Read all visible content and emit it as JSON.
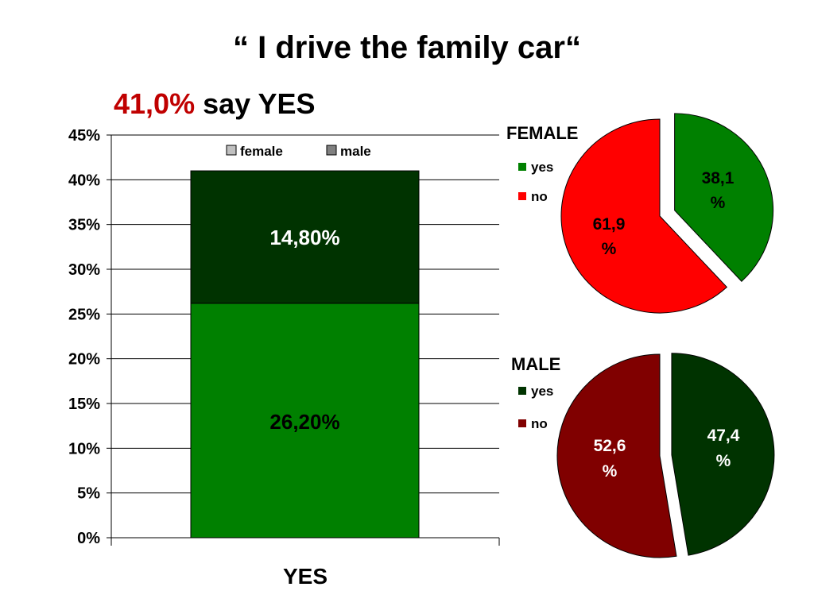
{
  "title": "“ I drive the family car“",
  "subtitle": {
    "highlight": "41,0%",
    "text": "say YES"
  },
  "colors": {
    "female_yes": "#008000",
    "female_no": "#ff0000",
    "male_yes": "#003300",
    "male_no": "#800000",
    "subtitle_highlight": "#c00000"
  },
  "chart_data": [
    {
      "type": "bar",
      "stacked": true,
      "categories": [
        "YES"
      ],
      "yticks": [
        "0%",
        "5%",
        "10%",
        "15%",
        "20%",
        "25%",
        "30%",
        "35%",
        "40%",
        "45%"
      ],
      "ylim": [
        0,
        45
      ],
      "grid": true,
      "legend": {
        "position": "top",
        "entries": [
          "female",
          "male"
        ]
      },
      "series": [
        {
          "name": "female",
          "values": [
            26.2
          ],
          "label": "26,20%"
        },
        {
          "name": "male",
          "values": [
            14.8
          ],
          "label": "14,80%"
        }
      ]
    },
    {
      "type": "pie",
      "title": "FEMALE",
      "legend": {
        "position": "left",
        "entries": [
          "yes",
          "no"
        ]
      },
      "slices": [
        {
          "name": "yes",
          "value": 38.1,
          "label_top": "38,1",
          "label_bottom": "%"
        },
        {
          "name": "no",
          "value": 61.9,
          "label_top": "61,9",
          "label_bottom": "%"
        }
      ]
    },
    {
      "type": "pie",
      "title": "MALE",
      "legend": {
        "position": "left",
        "entries": [
          "yes",
          "no"
        ]
      },
      "slices": [
        {
          "name": "yes",
          "value": 47.4,
          "label_top": "47,4",
          "label_bottom": "%"
        },
        {
          "name": "no",
          "value": 52.6,
          "label_top": "52,6",
          "label_bottom": "%"
        }
      ]
    }
  ]
}
